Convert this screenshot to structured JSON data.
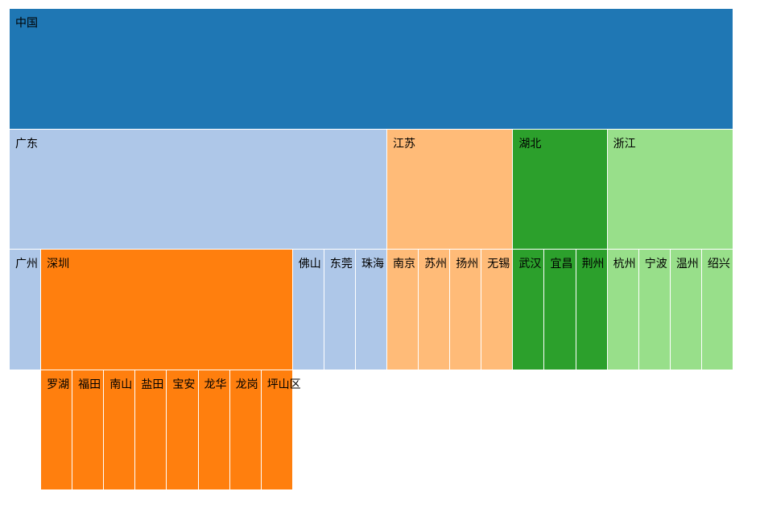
{
  "diagram": {
    "type": "icicle",
    "root": {
      "name": "中国",
      "color": "#1f77b4",
      "children": [
        {
          "name": "广东",
          "color": "#aec7e8",
          "children": [
            {
              "name": "广州",
              "color": "#aec7e8"
            },
            {
              "name": "深圳",
              "color": "#ff7f0e",
              "children": [
                {
                  "name": "罗湖",
                  "color": "#ff7f0e"
                },
                {
                  "name": "福田",
                  "color": "#ff7f0e"
                },
                {
                  "name": "南山",
                  "color": "#ff7f0e"
                },
                {
                  "name": "盐田",
                  "color": "#ff7f0e"
                },
                {
                  "name": "宝安",
                  "color": "#ff7f0e"
                },
                {
                  "name": "龙华",
                  "color": "#ff7f0e"
                },
                {
                  "name": "龙岗",
                  "color": "#ff7f0e"
                },
                {
                  "name": "坪山区",
                  "color": "#ff7f0e"
                }
              ]
            },
            {
              "name": "佛山",
              "color": "#aec7e8"
            },
            {
              "name": "东莞",
              "color": "#aec7e8"
            },
            {
              "name": "珠海",
              "color": "#aec7e8"
            }
          ]
        },
        {
          "name": "江苏",
          "color": "#ffbb78",
          "children": [
            {
              "name": "南京",
              "color": "#ffbb78"
            },
            {
              "name": "苏州",
              "color": "#ffbb78"
            },
            {
              "name": "扬州",
              "color": "#ffbb78"
            },
            {
              "name": "无锡",
              "color": "#ffbb78"
            }
          ]
        },
        {
          "name": "湖北",
          "color": "#2ca02c",
          "children": [
            {
              "name": "武汉",
              "color": "#2ca02c"
            },
            {
              "name": "宜昌",
              "color": "#2ca02c"
            },
            {
              "name": "荆州",
              "color": "#2ca02c"
            }
          ]
        },
        {
          "name": "浙江",
          "color": "#98df8a",
          "children": [
            {
              "name": "杭州",
              "color": "#98df8a"
            },
            {
              "name": "宁波",
              "color": "#98df8a"
            },
            {
              "name": "温州",
              "color": "#98df8a"
            },
            {
              "name": "绍兴",
              "color": "#98df8a"
            }
          ]
        }
      ]
    }
  }
}
